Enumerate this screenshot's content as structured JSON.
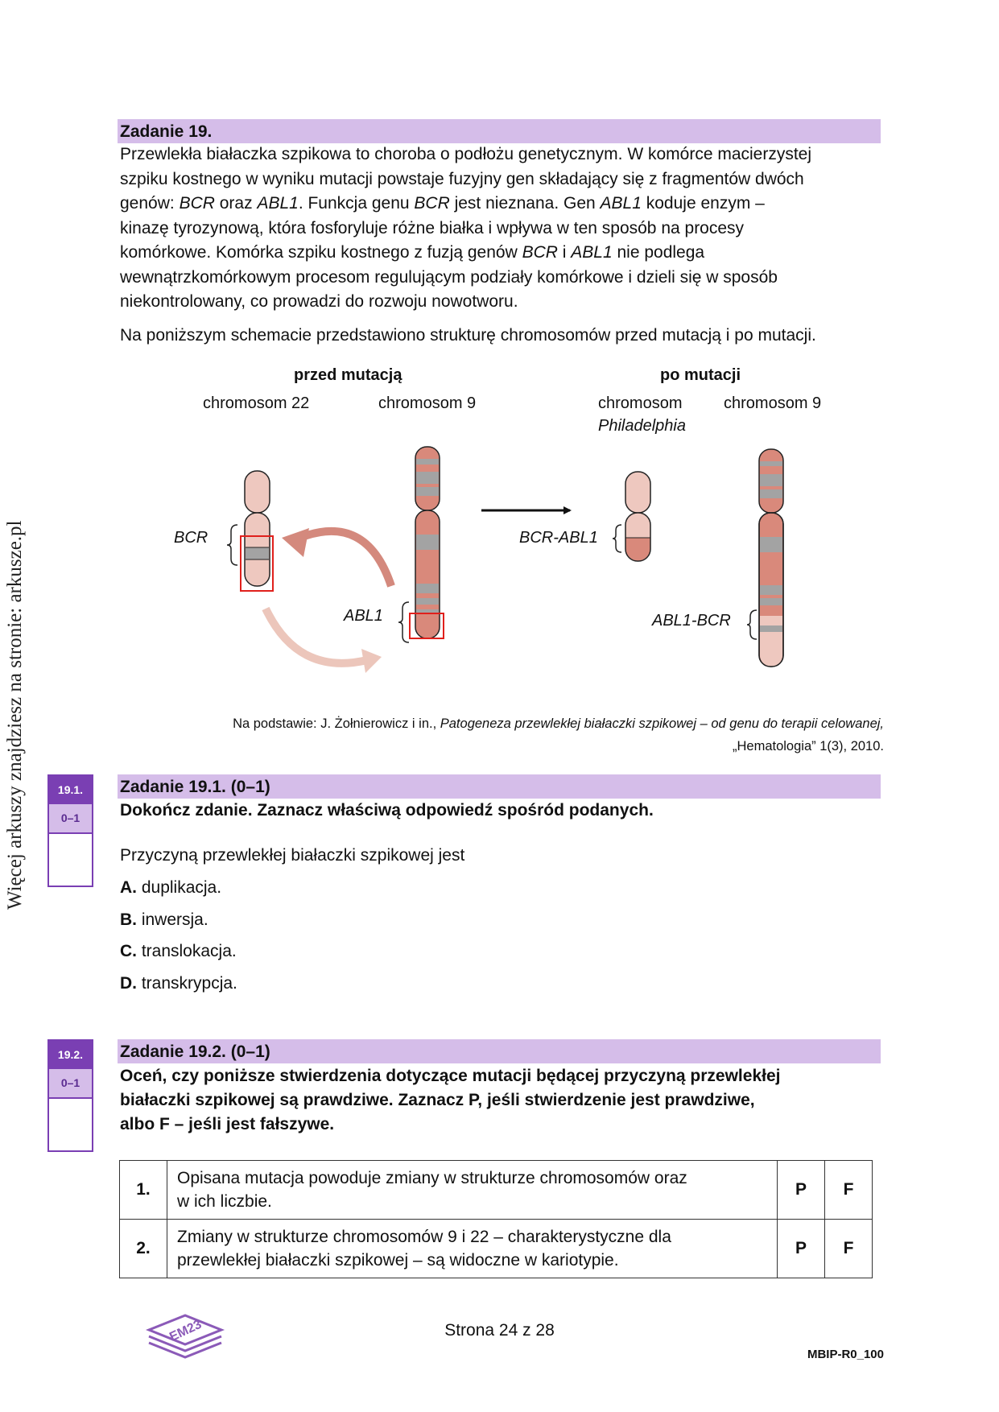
{
  "side_text": "Więcej arkuszy znajdziesz na stronie: arkusze.pl",
  "task19": {
    "title": "Zadanie 19.",
    "intro_lines": [
      [
        "Przewlekła białaczka szpikowa to choroba o podłożu genetycznym. W komórce macierzystej"
      ],
      [
        "szpiku kostnego w wyniku mutacji powstaje fuzyjny gen składający się z fragmentów dwóch"
      ],
      [
        "genów: ",
        {
          "i": "BCR"
        },
        " oraz ",
        {
          "i": "ABL1"
        },
        ". Funkcja genu ",
        {
          "i": "BCR"
        },
        " jest nieznana. Gen ",
        {
          "i": "ABL1"
        },
        " koduje enzym –"
      ],
      [
        "kinazę tyrozynową, która fosforyluje różne białka i wpływa w ten sposób na procesy"
      ],
      [
        "komórkowe. Komórka szpiku kostnego z fuzją genów ",
        {
          "i": "BCR"
        },
        " i ",
        {
          "i": "ABL1"
        },
        " nie podlega"
      ],
      [
        "wewnątrzkomórkowym procesom regulującym podziały komórkowe i dzieli się w sposób"
      ],
      [
        "niekontrolowany, co prowadzi do rozwoju nowotworu."
      ]
    ],
    "schema_intro": "Na poniższym schemacie przedstawiono strukturę chromosomów przed mutacją i po mutacji."
  },
  "diagram": {
    "before_label": "przed mutacją",
    "after_label": "po mutacji",
    "chr22_label": "chromosom 22",
    "chr9_label": "chromosom 9",
    "ph_label_1": "chromosom",
    "ph_label_2": "Philadelphia",
    "chr9_after_label": "chromosom 9",
    "bcr_label": "BCR",
    "abl1_label": "ABL1",
    "bcr_abl1_label": "BCR-ABL1",
    "abl1_bcr_label": "ABL1-BCR",
    "colors": {
      "light": "#eec8bf",
      "dark": "#d9897b",
      "band": "#a3a3a3",
      "box": "#e0201c",
      "arrow_dark": "#d4897d",
      "arrow_light": "#ecc6bb"
    }
  },
  "source": {
    "prefix": "Na podstawie: J. Żołnierowicz i in., ",
    "title": "Patogeneza przewlekłej białaczki szpikowej – od genu do terapii celowanej,",
    "line2": "„Hematologia” 1(3), 2010."
  },
  "task191": {
    "badge_num": "19.1.",
    "badge_pts": "0–1",
    "title": "Zadanie 19.1. (0–1)",
    "instruction": "Dokończ zdanie. Zaznacz właściwą odpowiedź spośród podanych.",
    "stem": "Przyczyną przewlekłej białaczki szpikowej jest",
    "options": [
      {
        "letter": "A.",
        "text": " duplikacja."
      },
      {
        "letter": "B.",
        "text": " inwersja."
      },
      {
        "letter": "C.",
        "text": " translokacja."
      },
      {
        "letter": "D.",
        "text": " transkrypcja."
      }
    ]
  },
  "task192": {
    "badge_num": "19.2.",
    "badge_pts": "0–1",
    "title": "Zadanie 19.2. (0–1)",
    "instruction_lines": [
      "Oceń, czy poniższe stwierdzenia dotyczące mutacji będącej przyczyną przewlekłej",
      "białaczki szpikowej są prawdziwe. Zaznacz P, jeśli stwierdzenie jest prawdziwe,",
      "albo F – jeśli jest fałszywe."
    ],
    "rows": [
      {
        "num": "1.",
        "line1": "Opisana mutacja powoduje zmiany w strukturze chromosomów oraz",
        "line2": "w ich liczbie.",
        "p": "P",
        "f": "F"
      },
      {
        "num": "2.",
        "line1": "Zmiany w strukturze chromosomów 9 i 22 – charakterystyczne dla",
        "line2": "przewlekłej białaczki szpikowej – są widoczne w kariotypie.",
        "p": "P",
        "f": "F"
      }
    ]
  },
  "footer": {
    "page": "Strona 24 z 28",
    "code": "MBIP-R0_100",
    "logo_text": "EM23"
  }
}
